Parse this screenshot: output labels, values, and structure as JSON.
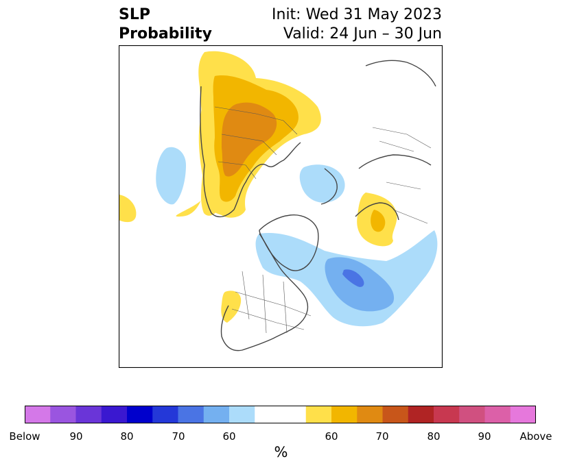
{
  "title": {
    "left_line1": "SLP",
    "left_line2": "Probability",
    "right_line1": "Init: Wed 31 May 2023",
    "right_line2": "Valid: 24 Jun – 30 Jun"
  },
  "colorbar": {
    "unit": "%",
    "tick_labels": [
      "Below",
      "90",
      "80",
      "70",
      "60",
      "60",
      "70",
      "80",
      "90",
      "Above"
    ],
    "colors": [
      "#d478e8",
      "#9a55e0",
      "#6a35d8",
      "#3a18d0",
      "#0000cc",
      "#2438d8",
      "#4a74e4",
      "#74b0f0",
      "#acdcfa",
      "#ffffff",
      "#ffe04a",
      "#f2b600",
      "#e08a12",
      "#c8561a",
      "#b02424",
      "#c83850",
      "#d05080",
      "#dc60a8",
      "#e678dc"
    ]
  },
  "map": {
    "colors": {
      "yellow": "#ffe04a",
      "orange": "#f2b600",
      "dark_orange": "#e08a12",
      "light_blue": "#acdcfa",
      "blue": "#74b0f0",
      "dark_blue": "#4a74e4",
      "coast": "#444444"
    }
  }
}
